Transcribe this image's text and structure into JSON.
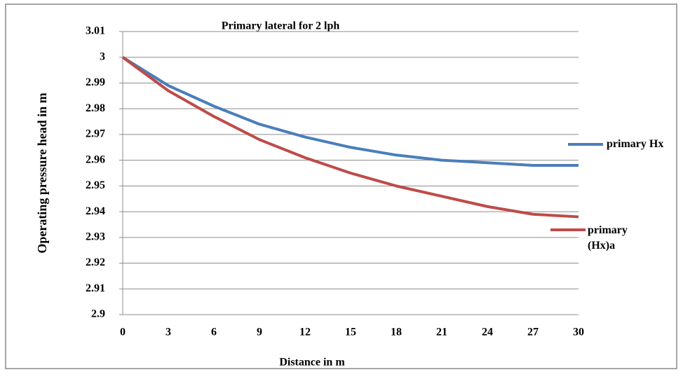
{
  "chart_data": {
    "type": "line",
    "title": "Primary lateral for 2 lph",
    "x_label": "Distance  in m",
    "y_label": "Operating pressure head  in m",
    "x": [
      0,
      3,
      6,
      9,
      12,
      15,
      18,
      21,
      24,
      27,
      30
    ],
    "series": [
      {
        "name": "primary Hx",
        "color": "#4a7ebb",
        "values": [
          3.0,
          2.989,
          2.981,
          2.974,
          2.969,
          2.965,
          2.962,
          2.96,
          2.959,
          2.958,
          2.958
        ]
      },
      {
        "name": "primary (Hx)a",
        "color": "#be4b48",
        "values": [
          3.0,
          2.987,
          2.977,
          2.968,
          2.961,
          2.955,
          2.95,
          2.946,
          2.942,
          2.939,
          2.938
        ]
      }
    ],
    "xlim": [
      0,
      30
    ],
    "xticks": [
      0,
      3,
      6,
      9,
      12,
      15,
      18,
      21,
      24,
      27,
      30
    ],
    "ylim": [
      2.9,
      3.01
    ],
    "yticks": [
      2.9,
      2.91,
      2.92,
      2.93,
      2.94,
      2.95,
      2.96,
      2.97,
      2.98,
      2.99,
      3,
      3.01
    ],
    "grid": true,
    "legend": "right"
  }
}
